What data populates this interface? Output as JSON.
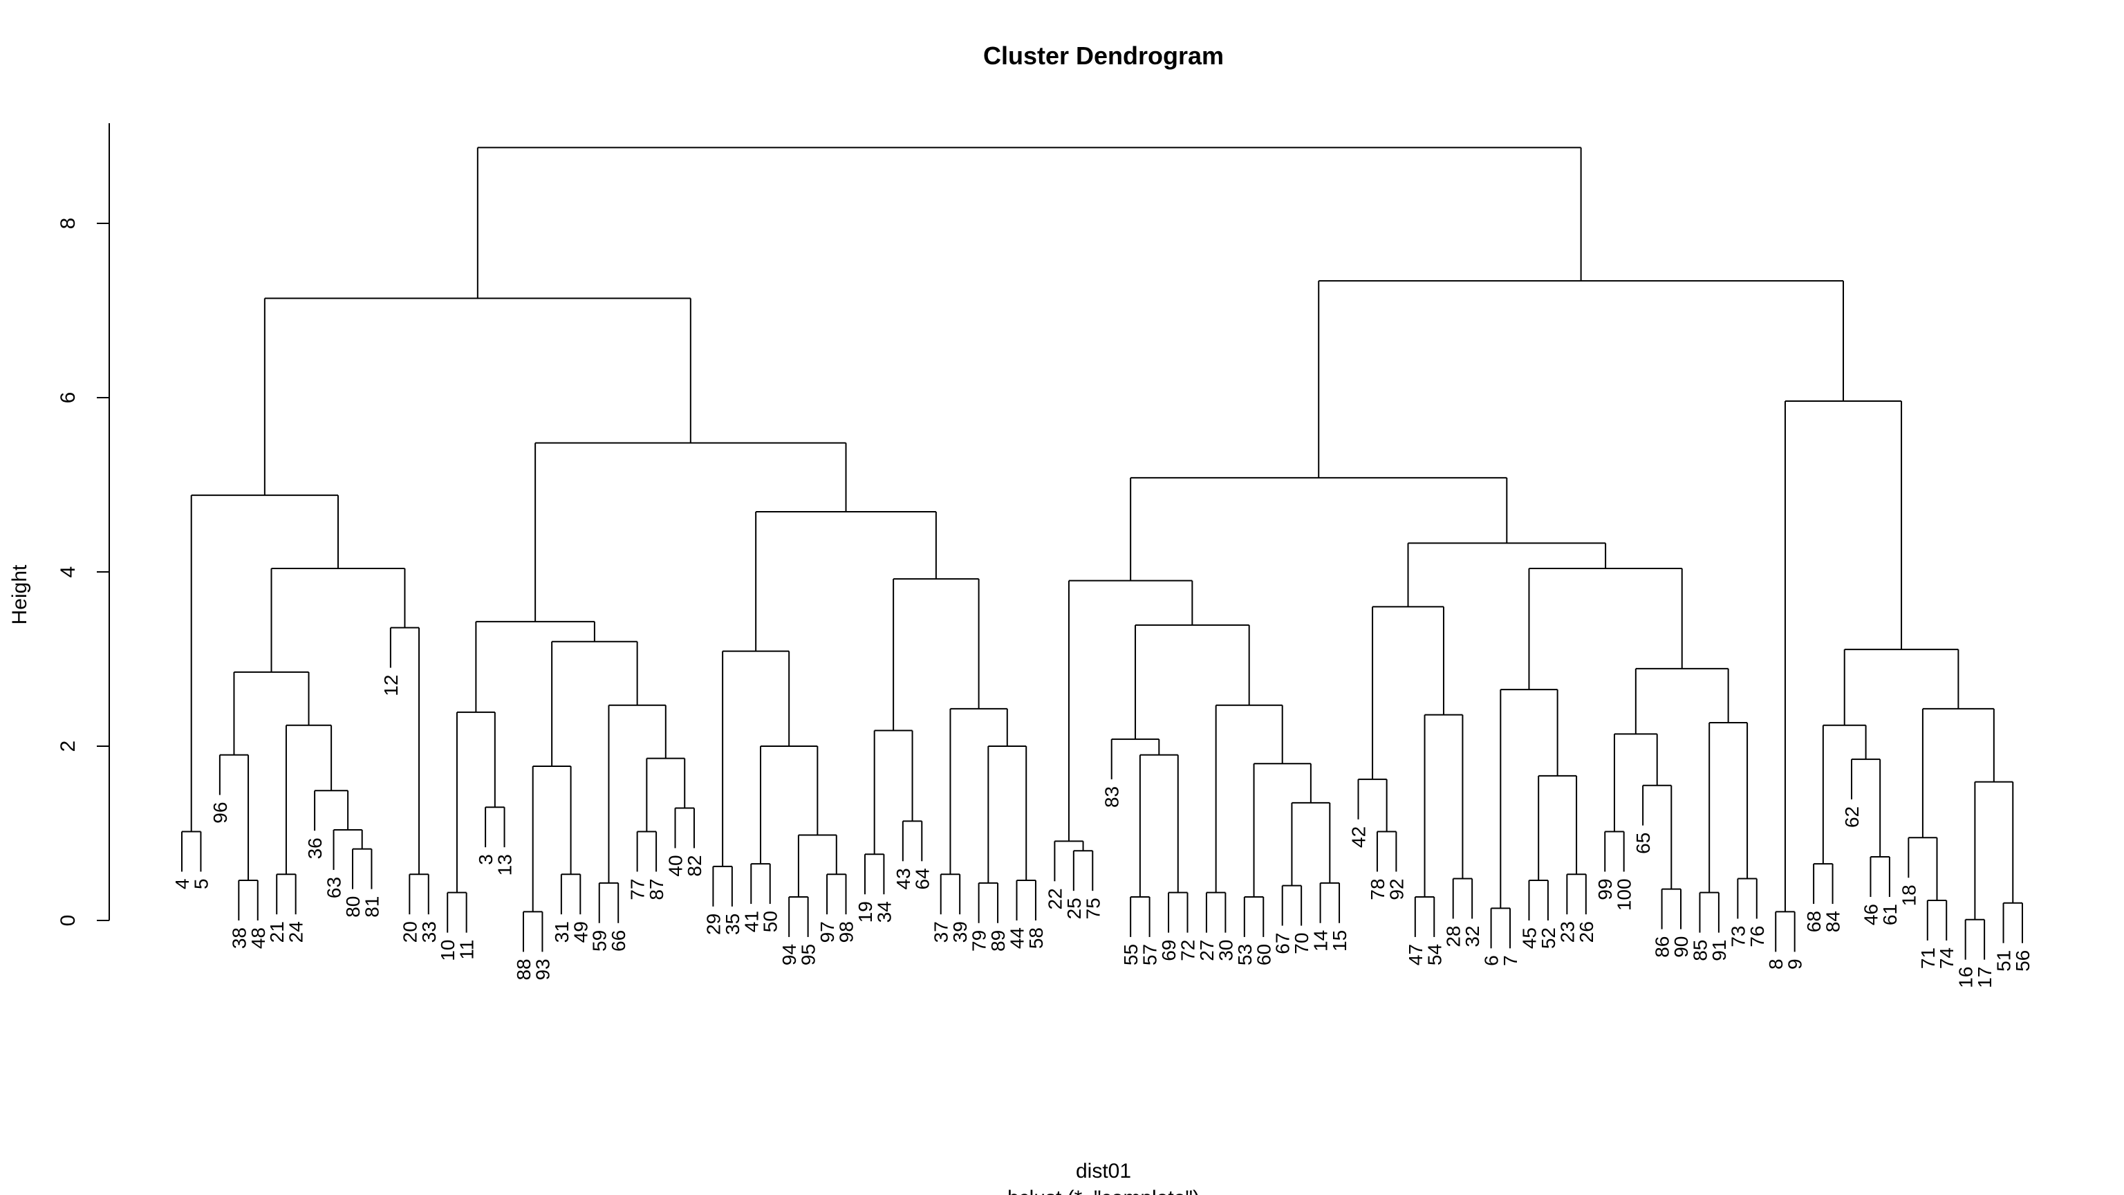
{
  "chart_data": {
    "type": "dendrogram",
    "title": "Cluster Dendrogram",
    "xlabel": "dist01",
    "sub": "hclust (*, \"complete\")",
    "ylabel": "Height",
    "ylim": [
      0,
      9
    ],
    "yticks": [
      "0",
      "2",
      "4",
      "6",
      "8"
    ],
    "root": {
      "h": 8.87,
      "c": [
        {
          "h": 7.14,
          "c": [
            {
              "h": 4.88,
              "c": [
                {
                  "h": 1.02,
                  "c": [
                    "4",
                    "5"
                  ]
                },
                {
                  "h": 4.04,
                  "c": [
                    {
                      "h": 2.85,
                      "c": [
                        {
                          "h": 1.9,
                          "c": [
                            "96",
                            {
                              "h": 0.46,
                              "c": [
                                "38",
                                "48"
                              ]
                            }
                          ]
                        },
                        {
                          "h": 2.24,
                          "c": [
                            {
                              "h": 0.53,
                              "c": [
                                "21",
                                "24"
                              ]
                            },
                            {
                              "h": 1.49,
                              "c": [
                                "36",
                                {
                                  "h": 1.04,
                                  "c": [
                                    "63",
                                    {
                                      "h": 0.82,
                                      "c": [
                                        "80",
                                        "81"
                                      ]
                                    }
                                  ]
                                }
                              ]
                            }
                          ]
                        }
                      ]
                    },
                    {
                      "h": 3.36,
                      "c": [
                        "12",
                        {
                          "h": 0.53,
                          "c": [
                            "20",
                            "33"
                          ]
                        }
                      ]
                    }
                  ]
                }
              ]
            },
            {
              "h": 5.48,
              "c": [
                {
                  "h": 3.43,
                  "c": [
                    {
                      "h": 2.39,
                      "c": [
                        {
                          "h": 0.32,
                          "c": [
                            "10",
                            "11"
                          ]
                        },
                        {
                          "h": 1.3,
                          "c": [
                            "3",
                            "13"
                          ]
                        }
                      ]
                    },
                    {
                      "h": 3.2,
                      "c": [
                        {
                          "h": 1.77,
                          "c": [
                            {
                              "h": 0.1,
                              "c": [
                                "88",
                                "93"
                              ]
                            },
                            {
                              "h": 0.53,
                              "c": [
                                "31",
                                "49"
                              ]
                            }
                          ]
                        },
                        {
                          "h": 2.47,
                          "c": [
                            {
                              "h": 0.43,
                              "c": [
                                "59",
                                "66"
                              ]
                            },
                            {
                              "h": 1.86,
                              "c": [
                                {
                                  "h": 1.02,
                                  "c": [
                                    "77",
                                    "87"
                                  ]
                                },
                                {
                                  "h": 1.29,
                                  "c": [
                                    "40",
                                    "82"
                                  ]
                                }
                              ]
                            }
                          ]
                        }
                      ]
                    }
                  ]
                },
                {
                  "h": 4.69,
                  "c": [
                    {
                      "h": 3.09,
                      "c": [
                        {
                          "h": 0.62,
                          "c": [
                            "29",
                            "35"
                          ]
                        },
                        {
                          "h": 2.0,
                          "c": [
                            {
                              "h": 0.65,
                              "c": [
                                "41",
                                "50"
                              ]
                            },
                            {
                              "h": 0.98,
                              "c": [
                                {
                                  "h": 0.27,
                                  "c": [
                                    "94",
                                    "95"
                                  ]
                                },
                                {
                                  "h": 0.53,
                                  "c": [
                                    "97",
                                    "98"
                                  ]
                                }
                              ]
                            }
                          ]
                        }
                      ]
                    },
                    {
                      "h": 3.92,
                      "c": [
                        {
                          "h": 2.18,
                          "c": [
                            {
                              "h": 0.76,
                              "c": [
                                "19",
                                "34"
                              ]
                            },
                            {
                              "h": 1.14,
                              "c": [
                                "43",
                                "64"
                              ]
                            }
                          ]
                        },
                        {
                          "h": 2.43,
                          "c": [
                            {
                              "h": 0.53,
                              "c": [
                                "37",
                                "39"
                              ]
                            },
                            {
                              "h": 2.0,
                              "c": [
                                {
                                  "h": 0.43,
                                  "c": [
                                    "79",
                                    "89"
                                  ]
                                },
                                {
                                  "h": 0.46,
                                  "c": [
                                    "44",
                                    "58"
                                  ]
                                }
                              ]
                            }
                          ]
                        }
                      ]
                    }
                  ]
                }
              ]
            }
          ]
        },
        {
          "h": 7.34,
          "c": [
            {
              "h": 5.08,
              "c": [
                {
                  "h": 3.9,
                  "c": [
                    {
                      "h": 0.91,
                      "c": [
                        "22",
                        {
                          "h": 0.8,
                          "c": [
                            "25",
                            "75"
                          ]
                        }
                      ]
                    },
                    {
                      "h": 3.39,
                      "c": [
                        {
                          "h": 2.08,
                          "c": [
                            "83",
                            {
                              "h": 1.9,
                              "c": [
                                {
                                  "h": 0.27,
                                  "c": [
                                    "55",
                                    "57"
                                  ]
                                },
                                {
                                  "h": 0.32,
                                  "c": [
                                    "69",
                                    "72"
                                  ]
                                }
                              ]
                            }
                          ]
                        },
                        {
                          "h": 2.47,
                          "c": [
                            {
                              "h": 0.32,
                              "c": [
                                "27",
                                "30"
                              ]
                            },
                            {
                              "h": 1.8,
                              "c": [
                                {
                                  "h": 0.27,
                                  "c": [
                                    "53",
                                    "60"
                                  ]
                                },
                                {
                                  "h": 1.35,
                                  "c": [
                                    {
                                      "h": 0.4,
                                      "c": [
                                        "67",
                                        "70"
                                      ]
                                    },
                                    {
                                      "h": 0.43,
                                      "c": [
                                        "14",
                                        "15"
                                      ]
                                    }
                                  ]
                                }
                              ]
                            }
                          ]
                        }
                      ]
                    }
                  ]
                },
                {
                  "h": 4.33,
                  "c": [
                    {
                      "h": 3.6,
                      "c": [
                        {
                          "h": 1.62,
                          "c": [
                            "42",
                            {
                              "h": 1.02,
                              "c": [
                                "78",
                                "92"
                              ]
                            }
                          ]
                        },
                        {
                          "h": 2.36,
                          "c": [
                            {
                              "h": 0.27,
                              "c": [
                                "47",
                                "54"
                              ]
                            },
                            {
                              "h": 0.48,
                              "c": [
                                "28",
                                "32"
                              ]
                            }
                          ]
                        }
                      ]
                    },
                    {
                      "h": 4.04,
                      "c": [
                        {
                          "h": 2.65,
                          "c": [
                            {
                              "h": 0.14,
                              "c": [
                                "6",
                                "7"
                              ]
                            },
                            {
                              "h": 1.66,
                              "c": [
                                {
                                  "h": 0.46,
                                  "c": [
                                    "45",
                                    "52"
                                  ]
                                },
                                {
                                  "h": 0.53,
                                  "c": [
                                    "23",
                                    "26"
                                  ]
                                }
                              ]
                            }
                          ]
                        },
                        {
                          "h": 2.89,
                          "c": [
                            {
                              "h": 2.14,
                              "c": [
                                {
                                  "h": 1.02,
                                  "c": [
                                    "99",
                                    "100"
                                  ]
                                },
                                {
                                  "h": 1.55,
                                  "c": [
                                    "65",
                                    {
                                      "h": 0.36,
                                      "c": [
                                        "86",
                                        "90"
                                      ]
                                    }
                                  ]
                                }
                              ]
                            },
                            {
                              "h": 2.27,
                              "c": [
                                {
                                  "h": 0.32,
                                  "c": [
                                    "85",
                                    "91"
                                  ]
                                },
                                {
                                  "h": 0.48,
                                  "c": [
                                    "73",
                                    "76"
                                  ]
                                }
                              ]
                            }
                          ]
                        }
                      ]
                    }
                  ]
                }
              ]
            },
            {
              "h": 5.96,
              "c": [
                {
                  "h": 0.1,
                  "c": [
                    "8",
                    "9"
                  ]
                },
                {
                  "h": 3.11,
                  "c": [
                    {
                      "h": 2.24,
                      "c": [
                        {
                          "h": 0.65,
                          "c": [
                            "68",
                            "84"
                          ]
                        },
                        {
                          "h": 1.85,
                          "c": [
                            "62",
                            {
                              "h": 0.73,
                              "c": [
                                "46",
                                "61"
                              ]
                            }
                          ]
                        }
                      ]
                    },
                    {
                      "h": 2.43,
                      "c": [
                        {
                          "h": 0.95,
                          "c": [
                            "18",
                            {
                              "h": 0.23,
                              "c": [
                                "71",
                                "74"
                              ]
                            }
                          ]
                        },
                        {
                          "h": 1.59,
                          "c": [
                            {
                              "h": 0.01,
                              "c": [
                                "16",
                                "17"
                              ]
                            },
                            {
                              "h": 0.2,
                              "c": [
                                "51",
                                "56"
                              ]
                            }
                          ]
                        }
                      ]
                    }
                  ]
                }
              ]
            }
          ]
        }
      ]
    }
  }
}
